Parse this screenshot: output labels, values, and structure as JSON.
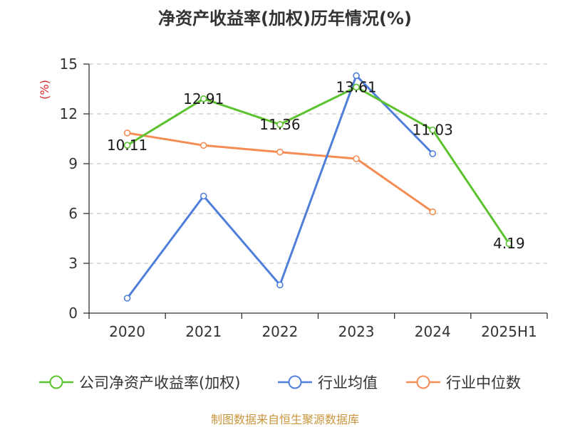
{
  "chart_data": {
    "type": "line",
    "title": "净资产收益率(加权)历年情况(%)",
    "ylabel": "(%)",
    "categories": [
      "2020",
      "2021",
      "2022",
      "2023",
      "2024",
      "2025H1"
    ],
    "ylim": [
      0,
      15
    ],
    "yticks": [
      0,
      3,
      6,
      9,
      12,
      15
    ],
    "grid": true,
    "legend_position": "bottom",
    "series": [
      {
        "name": "公司净资产收益率(加权)",
        "color": "#5cc22f",
        "values": [
          10.11,
          12.91,
          11.36,
          13.61,
          11.03,
          4.19
        ],
        "labels": [
          "10.11",
          "12.91",
          "11.36",
          "13.61",
          "11.03",
          "4.19"
        ]
      },
      {
        "name": "行业均值",
        "color": "#4f7fd8",
        "values": [
          0.9,
          7.05,
          1.7,
          14.3,
          9.6,
          null
        ]
      },
      {
        "name": "行业中位数",
        "color": "#f58c54",
        "values": [
          10.85,
          10.1,
          9.7,
          9.3,
          6.1,
          null
        ]
      }
    ]
  },
  "source": "制图数据来自恒生聚源数据库"
}
